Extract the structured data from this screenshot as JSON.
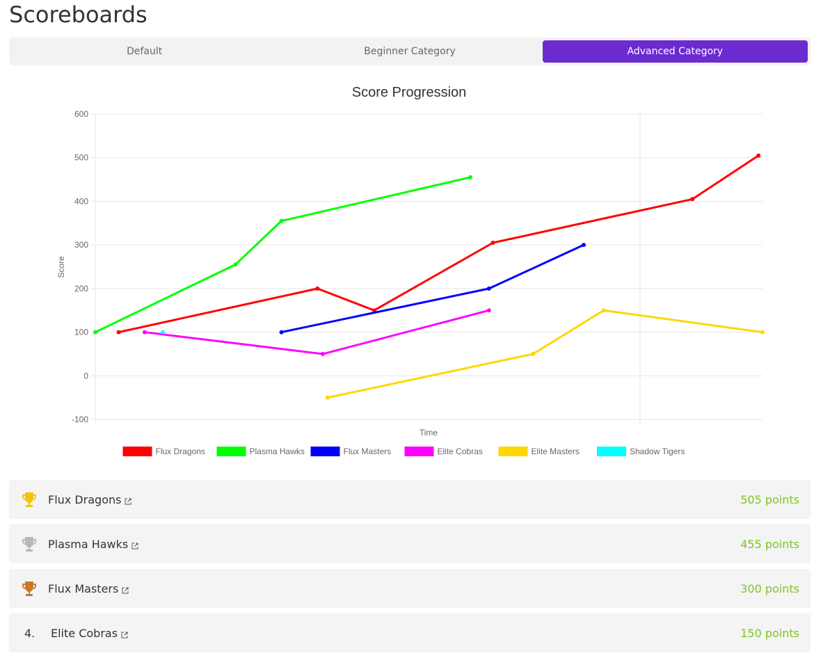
{
  "page": {
    "title": "Scoreboards"
  },
  "tabs": [
    {
      "label": "Default",
      "active": false
    },
    {
      "label": "Beginner Category",
      "active": false
    },
    {
      "label": "Advanced Category",
      "active": true
    }
  ],
  "chart_data": {
    "type": "line",
    "title": "Score Progression",
    "xlabel": "Time",
    "ylabel": "Score",
    "ylim": [
      -100,
      600
    ],
    "yticks": [
      600,
      500,
      400,
      300,
      200,
      100,
      0,
      -100
    ],
    "xlim": [
      0,
      100
    ],
    "series": [
      {
        "name": "Flux Dragons",
        "color": "#ff0000",
        "points": [
          [
            3.5,
            100
          ],
          [
            33.3,
            200
          ],
          [
            41.8,
            150
          ],
          [
            59.6,
            305
          ],
          [
            89.5,
            405
          ],
          [
            99.4,
            505
          ]
        ]
      },
      {
        "name": "Plasma Hawks",
        "color": "#00ff00",
        "points": [
          [
            0,
            100
          ],
          [
            21.0,
            255
          ],
          [
            27.9,
            355
          ],
          [
            56.2,
            455
          ]
        ]
      },
      {
        "name": "Flux Masters",
        "color": "#0000ff",
        "points": [
          [
            27.9,
            100
          ],
          [
            59.0,
            200
          ],
          [
            73.2,
            300
          ]
        ]
      },
      {
        "name": "Elite Cobras",
        "color": "#ff00ff",
        "points": [
          [
            7.4,
            100
          ],
          [
            34.1,
            50
          ],
          [
            59.0,
            150
          ]
        ]
      },
      {
        "name": "Elite Masters",
        "color": "#ffd700",
        "points": [
          [
            34.8,
            -50
          ],
          [
            65.6,
            50
          ],
          [
            76.2,
            150
          ],
          [
            100,
            100
          ]
        ]
      },
      {
        "name": "Shadow Tigers",
        "color": "#00ffff",
        "points": [
          [
            10.1,
            100
          ]
        ]
      }
    ]
  },
  "rankings": [
    {
      "rank": "1.",
      "team": "Flux Dragons",
      "points": "505 points",
      "trophy": "gold-trophy-icon",
      "trophy_color": "#f5c300"
    },
    {
      "rank": "2.",
      "team": "Plasma Hawks",
      "points": "455 points",
      "trophy": "silver-trophy-icon",
      "trophy_color": "#b8b8b8"
    },
    {
      "rank": "3.",
      "team": "Flux Masters",
      "points": "300 points",
      "trophy": "bronze-trophy-icon",
      "trophy_color": "#c8792a"
    },
    {
      "rank": "4.",
      "team": "Elite Cobras",
      "points": "150 points",
      "trophy": "",
      "trophy_color": ""
    }
  ],
  "colors": {
    "accent": "#6b2bd1",
    "points": "#7cc61f"
  }
}
